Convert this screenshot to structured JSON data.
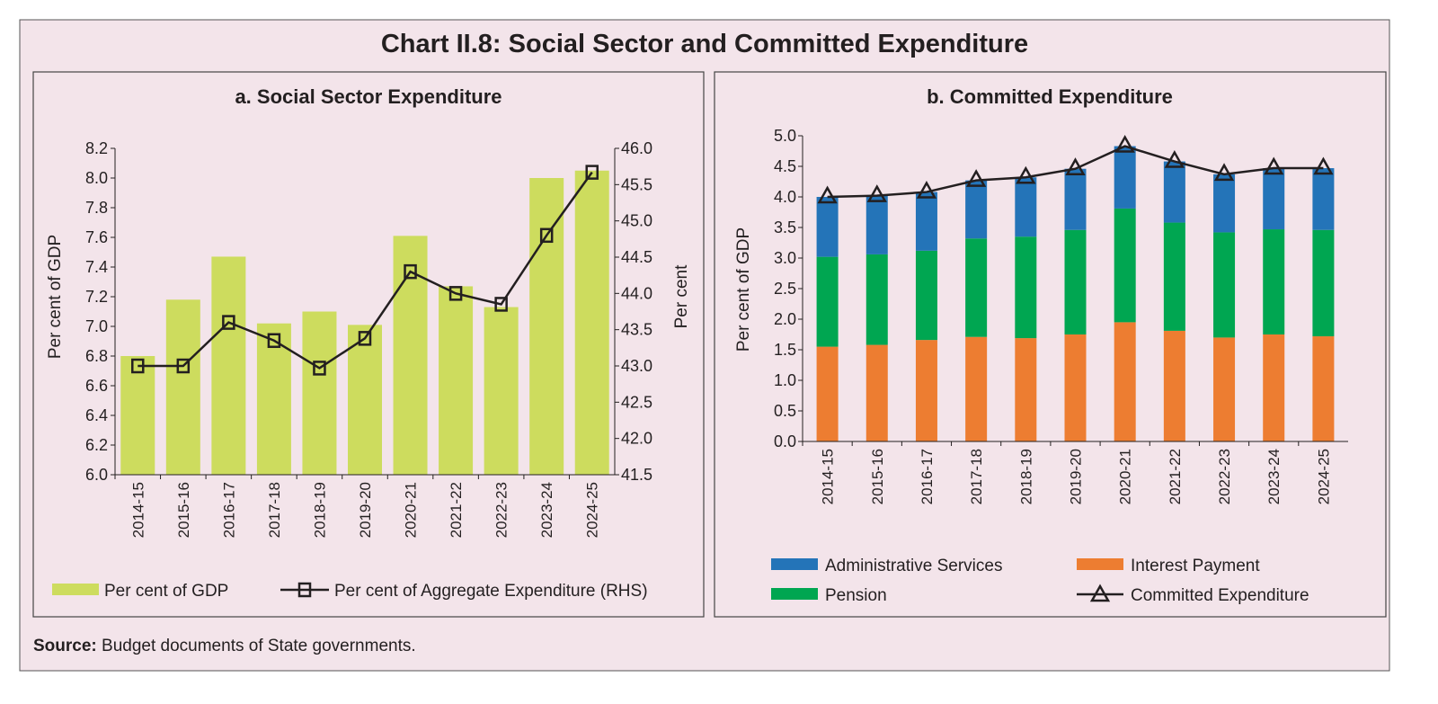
{
  "title": "Chart II.8: Social Sector and Committed Expenditure",
  "source_label": "Source:",
  "source_text": "Budget documents of State governments.",
  "chart_data": [
    {
      "type": "bar+line",
      "title": "a. Social Sector Expenditure",
      "ylabel": "Per cent of GDP",
      "ylabel_right": "Per cent",
      "ylim": [
        6.0,
        8.2
      ],
      "y_ticks": [
        "6.0",
        "6.2",
        "6.4",
        "6.6",
        "6.8",
        "7.0",
        "7.2",
        "7.4",
        "7.6",
        "7.8",
        "8.0",
        "8.2"
      ],
      "ylim_right": [
        41.5,
        46.0
      ],
      "y_ticks_right": [
        "41.5",
        "42.0",
        "42.5",
        "43.0",
        "43.5",
        "44.0",
        "44.5",
        "45.0",
        "45.5",
        "46.0"
      ],
      "categories": [
        "2014-15",
        "2015-16",
        "2016-17",
        "2017-18",
        "2018-19",
        "2019-20",
        "2020-21",
        "2021-22",
        "2022-23",
        "2023-24",
        "2024-25"
      ],
      "series": [
        {
          "name": "Per cent of GDP",
          "type": "bar",
          "axis": "left",
          "color": "#cddc5e",
          "values": [
            6.8,
            7.18,
            7.47,
            7.02,
            7.1,
            7.01,
            7.61,
            7.27,
            7.13,
            8.0,
            8.05
          ]
        },
        {
          "name": "Per cent of Aggregate Expenditure (RHS)",
          "type": "line",
          "axis": "right",
          "marker": "square",
          "color": "#231f20",
          "values": [
            43.0,
            43.0,
            43.6,
            43.35,
            42.97,
            43.38,
            44.3,
            44.0,
            43.85,
            44.8,
            45.67
          ]
        }
      ],
      "grid": false,
      "legend": "bottom"
    },
    {
      "type": "stacked-bar+line",
      "title": "b. Committed Expenditure",
      "ylabel": "Per cent of GDP",
      "ylim": [
        0,
        5.0
      ],
      "y_ticks": [
        "0.0",
        "0.5",
        "1.0",
        "1.5",
        "2.0",
        "2.5",
        "3.0",
        "3.5",
        "4.0",
        "4.5",
        "5.0"
      ],
      "categories": [
        "2014-15",
        "2015-16",
        "2016-17",
        "2017-18",
        "2018-19",
        "2019-20",
        "2020-21",
        "2021-22",
        "2022-23",
        "2023-24",
        "2024-25"
      ],
      "series": [
        {
          "name": "Interest Payment",
          "type": "bar",
          "color": "#ed7d31",
          "values": [
            1.55,
            1.58,
            1.66,
            1.71,
            1.69,
            1.75,
            1.95,
            1.81,
            1.7,
            1.75,
            1.72
          ]
        },
        {
          "name": "Pension",
          "type": "bar",
          "color": "#00a651",
          "values": [
            1.47,
            1.48,
            1.46,
            1.61,
            1.66,
            1.71,
            1.86,
            1.77,
            1.72,
            1.72,
            1.74
          ]
        },
        {
          "name": "Administrative Services",
          "type": "bar",
          "color": "#2474b8",
          "values": [
            0.98,
            0.96,
            0.96,
            0.95,
            0.97,
            1.0,
            1.02,
            1.0,
            0.95,
            1.0,
            1.01
          ]
        },
        {
          "name": "Committed Expenditure",
          "type": "line",
          "marker": "triangle",
          "color": "#231f20",
          "values": [
            4.0,
            4.02,
            4.08,
            4.27,
            4.32,
            4.46,
            4.83,
            4.58,
            4.37,
            4.47,
            4.47
          ]
        }
      ],
      "legend_order": [
        "Administrative Services",
        "Interest Payment",
        "Pension",
        "Committed Expenditure"
      ],
      "grid": false,
      "legend": "bottom"
    }
  ]
}
